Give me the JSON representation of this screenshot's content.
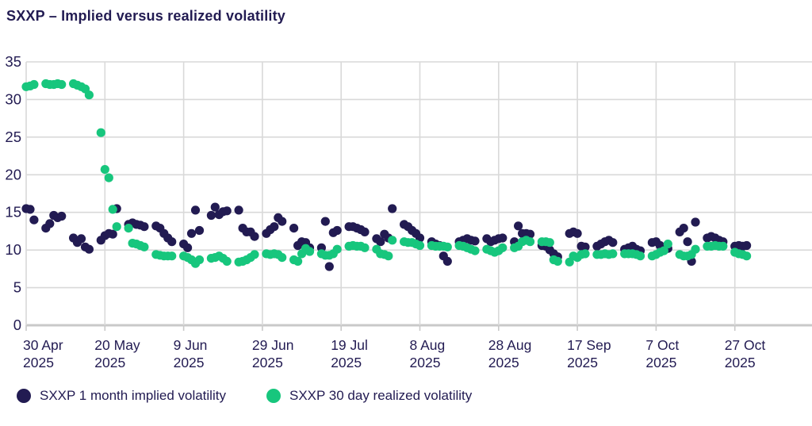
{
  "title": "SXXP – Implied versus realized volatility",
  "legend": [
    {
      "label": "SXXP 1 month implied volatility",
      "color": "#221b52"
    },
    {
      "label": "SXXP 30 day realized volatility",
      "color": "#17c67d"
    }
  ],
  "colors": {
    "text_navy": "#221b52",
    "implied_dot": "#221b52",
    "realized_dot": "#17c67d",
    "gridline": "#d9d9d9",
    "axis_line": "#c9c9c9",
    "background": "#ffffff"
  },
  "chart_data": {
    "type": "scatter",
    "title": "SXXP – Implied versus realized volatility",
    "xlabel": "",
    "ylabel": "",
    "ylim": [
      0,
      35
    ],
    "yticks": [
      0,
      5,
      10,
      15,
      20,
      25,
      30,
      35
    ],
    "grid": true,
    "legend_position": "bottom",
    "xticks": [
      {
        "date": "2025-04-30",
        "line1": "30 Apr",
        "line2": "2025"
      },
      {
        "date": "2025-05-20",
        "line1": "20 May",
        "line2": "2025"
      },
      {
        "date": "2025-06-09",
        "line1": "9 Jun",
        "line2": "2025"
      },
      {
        "date": "2025-06-29",
        "line1": "29 Jun",
        "line2": "2025"
      },
      {
        "date": "2025-07-19",
        "line1": "19 Jul",
        "line2": "2025"
      },
      {
        "date": "2025-08-08",
        "line1": "8 Aug",
        "line2": "2025"
      },
      {
        "date": "2025-08-28",
        "line1": "28 Aug",
        "line2": "2025"
      },
      {
        "date": "2025-09-17",
        "line1": "17 Sep",
        "line2": "2025"
      },
      {
        "date": "2025-10-07",
        "line1": "7 Oct",
        "line2": "2025"
      },
      {
        "date": "2025-10-27",
        "line1": "27 Oct",
        "line2": "2025"
      }
    ],
    "x": [
      "2025-04-30",
      "2025-05-01",
      "2025-05-02",
      "2025-05-05",
      "2025-05-06",
      "2025-05-07",
      "2025-05-08",
      "2025-05-09",
      "2025-05-12",
      "2025-05-13",
      "2025-05-14",
      "2025-05-15",
      "2025-05-16",
      "2025-05-19",
      "2025-05-20",
      "2025-05-21",
      "2025-05-22",
      "2025-05-23",
      "2025-05-26",
      "2025-05-27",
      "2025-05-28",
      "2025-05-29",
      "2025-05-30",
      "2025-06-02",
      "2025-06-03",
      "2025-06-04",
      "2025-06-05",
      "2025-06-06",
      "2025-06-09",
      "2025-06-10",
      "2025-06-11",
      "2025-06-12",
      "2025-06-13",
      "2025-06-16",
      "2025-06-17",
      "2025-06-18",
      "2025-06-19",
      "2025-06-20",
      "2025-06-23",
      "2025-06-24",
      "2025-06-25",
      "2025-06-26",
      "2025-06-27",
      "2025-06-30",
      "2025-07-01",
      "2025-07-02",
      "2025-07-03",
      "2025-07-04",
      "2025-07-07",
      "2025-07-08",
      "2025-07-09",
      "2025-07-10",
      "2025-07-11",
      "2025-07-14",
      "2025-07-15",
      "2025-07-16",
      "2025-07-17",
      "2025-07-18",
      "2025-07-21",
      "2025-07-22",
      "2025-07-23",
      "2025-07-24",
      "2025-07-25",
      "2025-07-28",
      "2025-07-29",
      "2025-07-30",
      "2025-07-31",
      "2025-08-01",
      "2025-08-04",
      "2025-08-05",
      "2025-08-06",
      "2025-08-07",
      "2025-08-08",
      "2025-08-11",
      "2025-08-12",
      "2025-08-13",
      "2025-08-14",
      "2025-08-15",
      "2025-08-18",
      "2025-08-19",
      "2025-08-20",
      "2025-08-21",
      "2025-08-22",
      "2025-08-25",
      "2025-08-26",
      "2025-08-27",
      "2025-08-28",
      "2025-08-29",
      "2025-09-01",
      "2025-09-02",
      "2025-09-03",
      "2025-09-04",
      "2025-09-05",
      "2025-09-08",
      "2025-09-09",
      "2025-09-10",
      "2025-09-11",
      "2025-09-12",
      "2025-09-15",
      "2025-09-16",
      "2025-09-17",
      "2025-09-18",
      "2025-09-19",
      "2025-09-22",
      "2025-09-23",
      "2025-09-24",
      "2025-09-25",
      "2025-09-26",
      "2025-09-29",
      "2025-09-30",
      "2025-10-01",
      "2025-10-02",
      "2025-10-03",
      "2025-10-06",
      "2025-10-07",
      "2025-10-08",
      "2025-10-09",
      "2025-10-10",
      "2025-10-13",
      "2025-10-14",
      "2025-10-15",
      "2025-10-16",
      "2025-10-17",
      "2025-10-20",
      "2025-10-21",
      "2025-10-22",
      "2025-10-23",
      "2025-10-24",
      "2025-10-27",
      "2025-10-28",
      "2025-10-29",
      "2025-10-30"
    ],
    "series": [
      {
        "name": "SXXP 1 month implied volatility",
        "color": "#221b52",
        "values": [
          15.5,
          15.4,
          14.0,
          12.9,
          13.5,
          14.6,
          14.3,
          14.5,
          11.6,
          11.0,
          11.5,
          10.4,
          10.1,
          11.3,
          11.9,
          12.2,
          12.1,
          15.5,
          13.4,
          13.6,
          13.4,
          13.3,
          13.1,
          13.2,
          12.9,
          12.2,
          11.6,
          11.1,
          10.8,
          10.3,
          12.2,
          15.3,
          12.6,
          14.6,
          15.7,
          14.7,
          15.1,
          15.2,
          15.3,
          12.9,
          12.4,
          12.4,
          11.8,
          12.2,
          12.7,
          13.1,
          14.3,
          13.8,
          12.9,
          10.6,
          11.1,
          11.0,
          10.3,
          10.3,
          13.8,
          7.8,
          12.3,
          12.6,
          13.1,
          13.1,
          12.9,
          12.7,
          12.4,
          11.5,
          11.1,
          12.1,
          11.6,
          15.5,
          13.4,
          13.1,
          12.6,
          12.2,
          11.6,
          11.1,
          10.8,
          10.6,
          9.2,
          8.5,
          11.1,
          11.3,
          11.5,
          11.3,
          11.2,
          11.5,
          11.1,
          11.3,
          11.5,
          11.6,
          11.1,
          13.2,
          12.2,
          12.2,
          12.1,
          10.6,
          10.5,
          10.0,
          9.5,
          9.1,
          12.2,
          12.4,
          12.2,
          10.5,
          10.4,
          10.5,
          10.8,
          11.1,
          11.3,
          11.0,
          10.1,
          10.3,
          10.5,
          10.1,
          9.9,
          11.0,
          11.1,
          10.6,
          10.3,
          10.2,
          12.4,
          12.9,
          11.1,
          8.5,
          13.7,
          11.6,
          11.8,
          11.6,
          11.3,
          11.1,
          10.5,
          10.6,
          10.5,
          10.6
        ]
      },
      {
        "name": "SXXP 30 day realized volatility",
        "color": "#17c67d",
        "values": [
          31.7,
          31.8,
          32.0,
          32.1,
          32.0,
          32.0,
          32.1,
          32.0,
          32.1,
          31.9,
          31.7,
          31.4,
          30.6,
          25.6,
          20.7,
          19.6,
          15.4,
          13.1,
          12.9,
          10.9,
          10.8,
          10.6,
          10.4,
          9.4,
          9.3,
          9.2,
          9.2,
          9.2,
          9.2,
          9.0,
          8.7,
          8.2,
          8.7,
          8.9,
          9.0,
          9.2,
          8.9,
          8.5,
          8.4,
          8.5,
          8.7,
          9.0,
          9.4,
          9.5,
          9.4,
          9.5,
          9.4,
          9.0,
          8.7,
          8.5,
          9.5,
          10.2,
          9.8,
          9.5,
          9.3,
          9.3,
          9.5,
          10.1,
          10.5,
          10.6,
          10.5,
          10.5,
          10.3,
          10.1,
          9.5,
          9.4,
          9.2,
          11.3,
          11.1,
          11.0,
          11.0,
          10.8,
          10.6,
          10.6,
          10.5,
          10.5,
          10.5,
          10.4,
          10.6,
          10.5,
          10.3,
          10.1,
          9.9,
          10.1,
          9.9,
          9.7,
          9.9,
          10.3,
          10.3,
          10.5,
          11.1,
          11.3,
          11.1,
          11.1,
          11.1,
          11.0,
          8.7,
          8.5,
          8.4,
          9.2,
          9.0,
          9.4,
          9.5,
          9.4,
          9.4,
          9.5,
          9.4,
          9.5,
          9.5,
          9.5,
          9.5,
          9.4,
          9.2,
          9.2,
          9.4,
          9.7,
          9.9,
          10.8,
          9.4,
          9.2,
          9.2,
          9.4,
          10.1,
          10.5,
          10.5,
          10.6,
          10.5,
          10.5,
          9.7,
          9.5,
          9.4,
          9.2
        ]
      }
    ]
  }
}
